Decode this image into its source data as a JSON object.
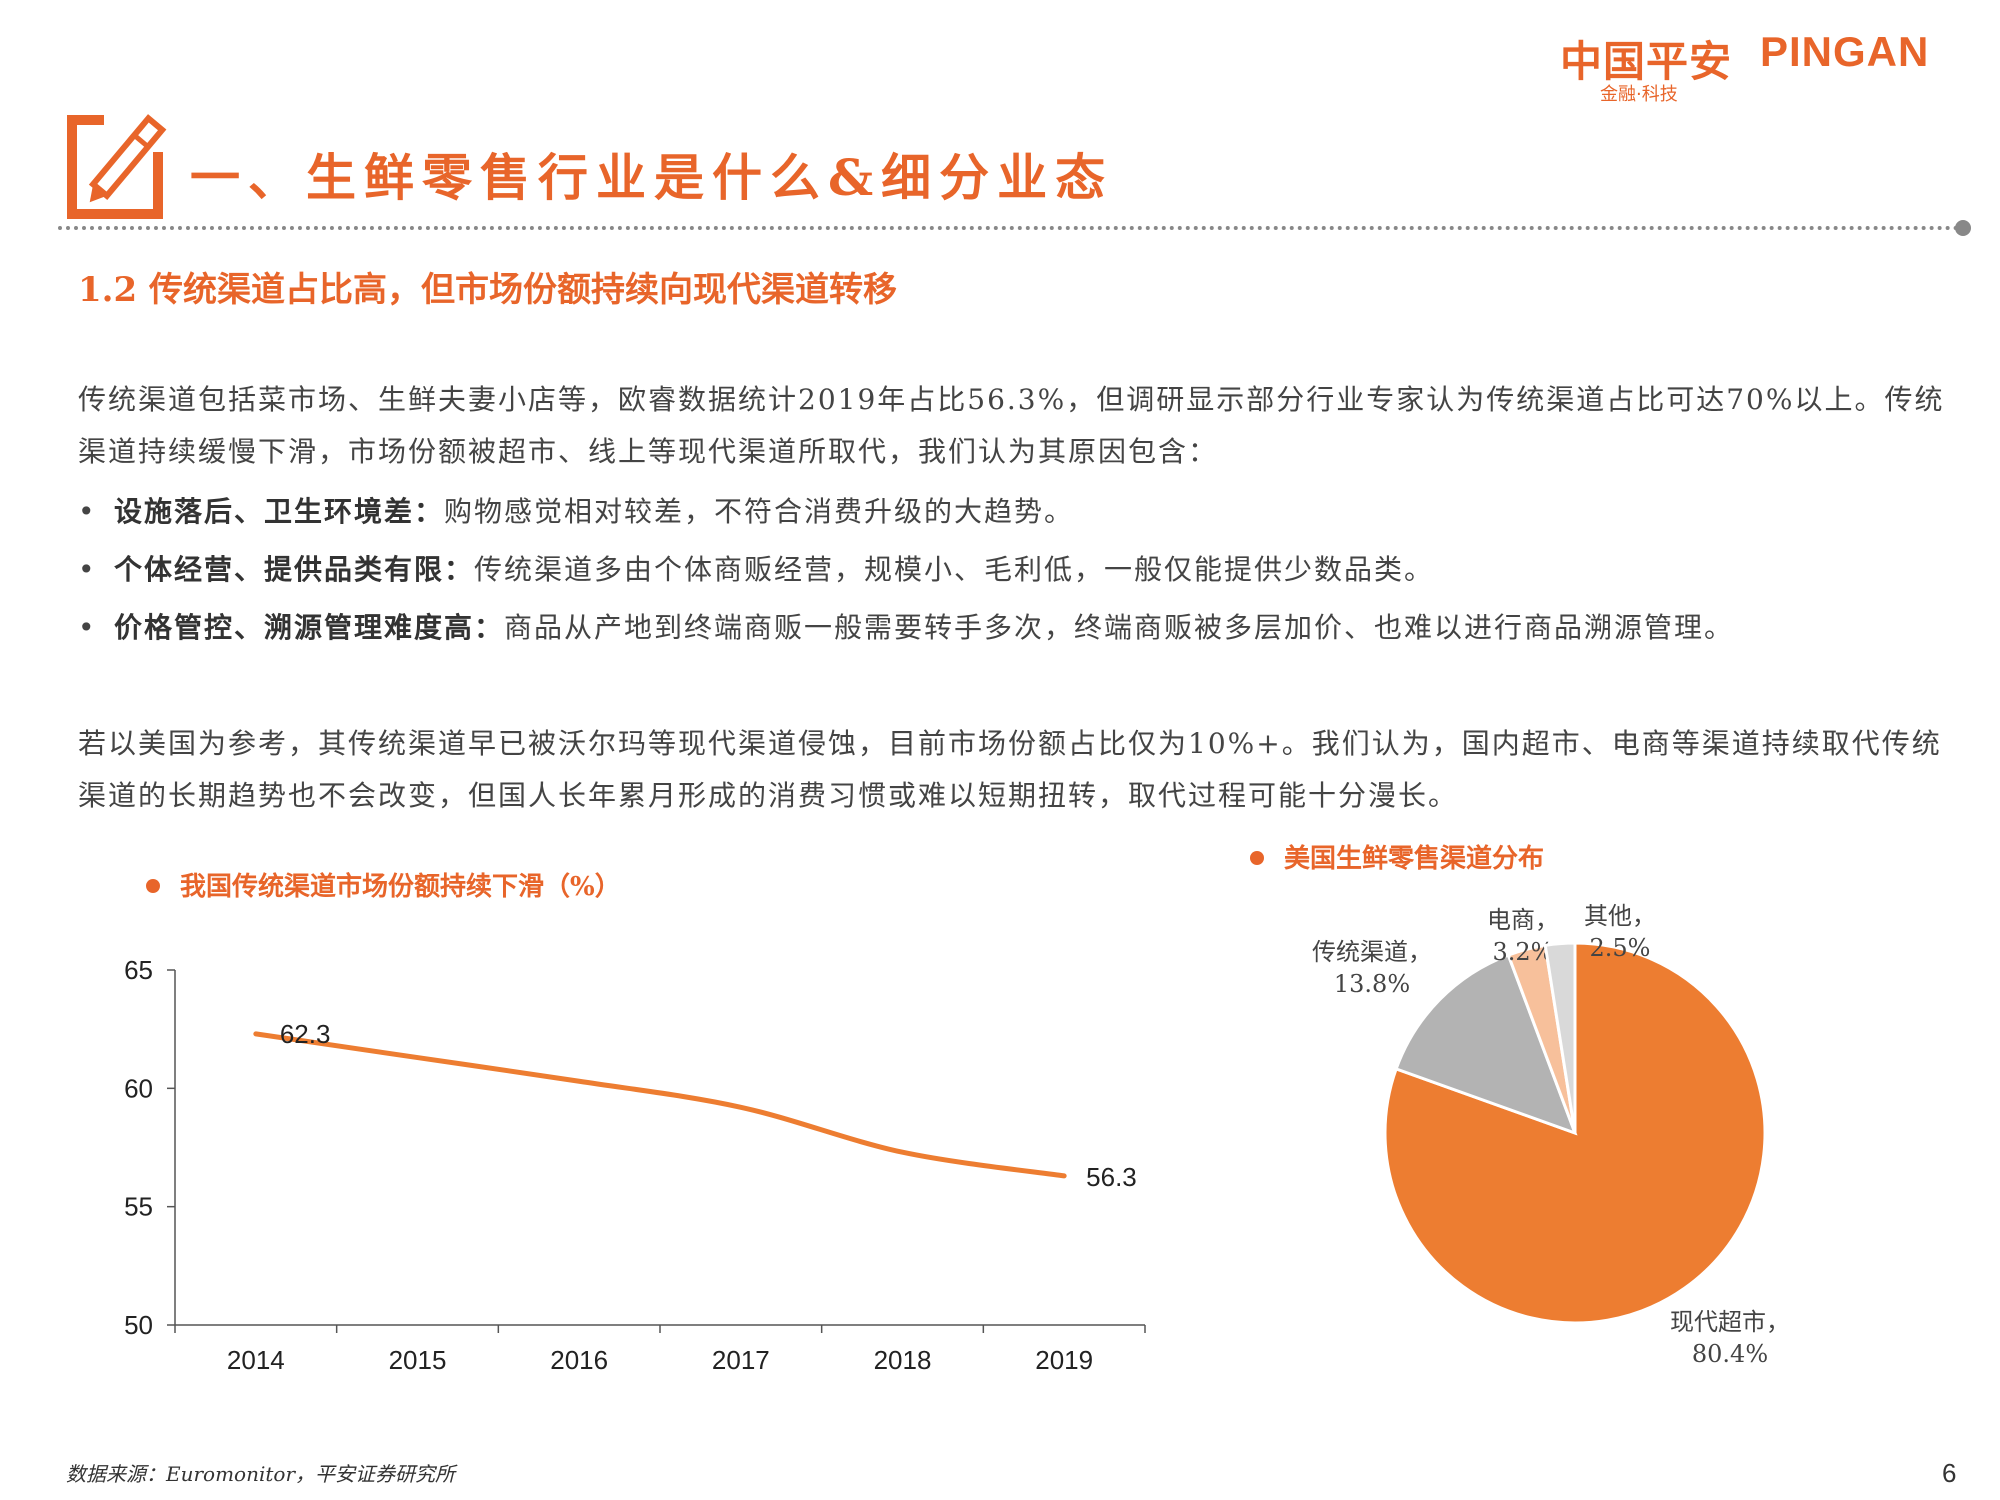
{
  "logo": {
    "cn": "中国平安",
    "en": "PINGAN",
    "sub": "金融·科技"
  },
  "header": {
    "title": "一、生鲜零售行业是什么&细分业态"
  },
  "section": {
    "title": "1.2 传统渠道占比高，但市场份额持续向现代渠道转移"
  },
  "body": {
    "para1": "传统渠道包括菜市场、生鲜夫妻小店等，欧睿数据统计2019年占比56.3%，但调研显示部分行业专家认为传统渠道占比可达70%以上。传统渠道持续缓慢下滑，市场份额被超市、线上等现代渠道所取代，我们认为其原因包含：",
    "bullets": [
      {
        "lead": "设施落后、卫生环境差：",
        "text": "购物感觉相对较差，不符合消费升级的大趋势。"
      },
      {
        "lead": "个体经营、提供品类有限：",
        "text": "传统渠道多由个体商贩经营，规模小、毛利低，一般仅能提供少数品类。"
      },
      {
        "lead": "价格管控、溯源管理难度高：",
        "text": "商品从产地到终端商贩一般需要转手多次，终端商贩被多层加价、也难以进行商品溯源管理。"
      }
    ],
    "bullet_symbol": "•",
    "para2": "若以美国为参考，其传统渠道早已被沃尔玛等现代渠道侵蚀，目前市场份额占比仅为10%+。我们认为，国内超市、电商等渠道持续取代传统渠道的长期趋势也不会改变，但国人长年累月形成的消费习惯或难以短期扭转，取代过程可能十分漫长。"
  },
  "chart_data": [
    {
      "type": "line",
      "title": "我国传统渠道市场份额持续下滑（%）",
      "categories": [
        "2014",
        "2015",
        "2016",
        "2017",
        "2018",
        "2019"
      ],
      "series": [
        {
          "values": [
            62.3,
            61.3,
            60.3,
            59.2,
            57.3,
            56.3
          ],
          "color": "#ed7d31"
        }
      ],
      "data_labels": [
        {
          "index": 0,
          "text": "62.3"
        },
        {
          "index": 5,
          "text": "56.3"
        }
      ],
      "yticks": [
        "65",
        "60",
        "55",
        "50"
      ],
      "ylim": [
        50,
        65
      ],
      "grid": false
    },
    {
      "type": "pie",
      "title": "美国生鲜零售渠道分布",
      "slices": [
        {
          "label": "现代超市",
          "value": 80.4,
          "display": "80.4%",
          "color": "#ed7d31"
        },
        {
          "label": "传统渠道",
          "value": 13.8,
          "display": "13.8%",
          "color": "#b3b3b3"
        },
        {
          "label": "电商",
          "value": 3.2,
          "display": "3.2%",
          "color": "#f7c09b"
        },
        {
          "label": "其他",
          "value": 2.5,
          "display": "2.5%",
          "color": "#d9d9d9"
        }
      ]
    }
  ],
  "footer": {
    "source": "数据来源：Euromonitor，平安证券研究所",
    "page": "6"
  }
}
